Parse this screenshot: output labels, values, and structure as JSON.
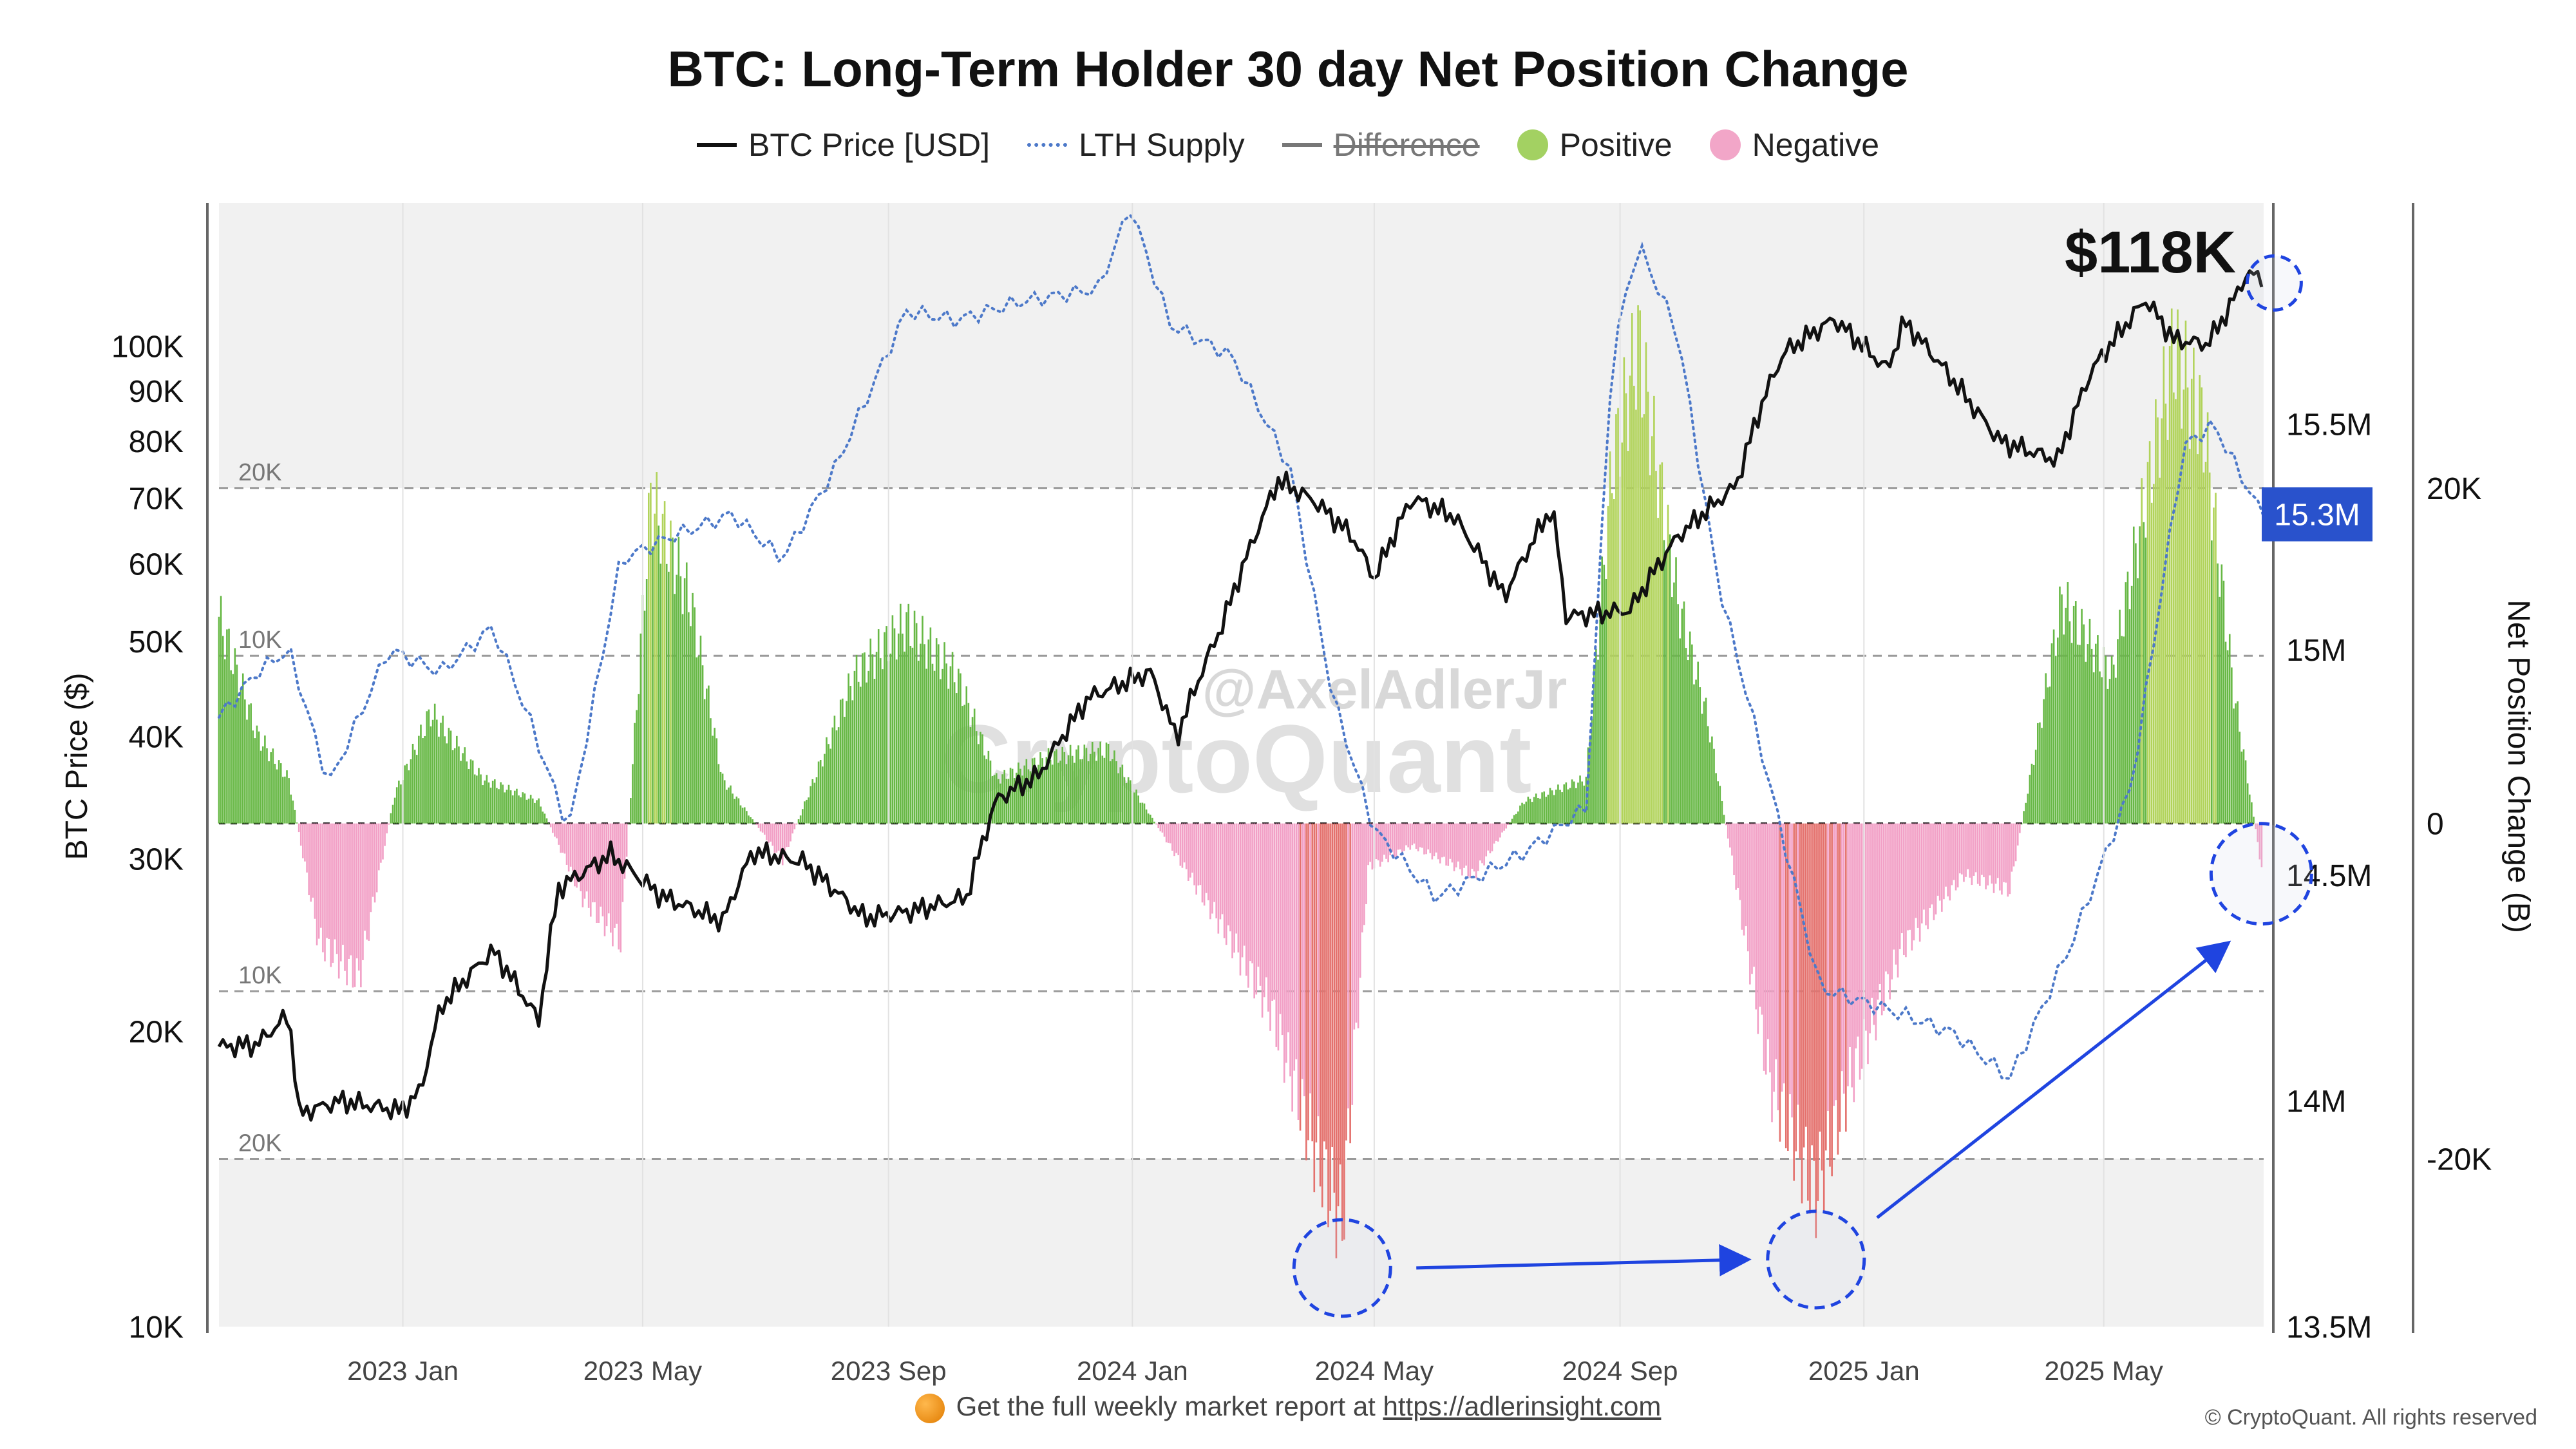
{
  "chart_data": {
    "type": "bar",
    "title": "BTC: Long-Term Holder 30 day Net Position Change",
    "legend": [
      {
        "label": "BTC Price [USD]",
        "style": "line",
        "color": "#111111"
      },
      {
        "label": "LTH Supply",
        "style": "dotted",
        "color": "#4d79c9"
      },
      {
        "label": "Difference",
        "style": "line",
        "color": "#777777",
        "hidden": true
      },
      {
        "label": "Positive",
        "style": "dot",
        "color": "#a3d162"
      },
      {
        "label": "Negative",
        "style": "dot",
        "color": "#f2a6c8"
      }
    ],
    "legend_position": "top-center",
    "colors": {
      "price": "#111111",
      "supply": "#4d79c9",
      "positive": "#67b845",
      "positive_light": "#b1d35a",
      "negative": "#f2a0c6",
      "negative_strong": "#e4716d",
      "annotation": "#1f44e0",
      "current_badge": "#2952cc"
    },
    "left_axis": {
      "label": "BTC Price ($)",
      "scale": "log",
      "range": [
        10000,
        140000
      ],
      "ticks": [
        {
          "value": 10000,
          "label": "10K"
        },
        {
          "value": 20000,
          "label": "20K"
        },
        {
          "value": 30000,
          "label": "30K"
        },
        {
          "value": 40000,
          "label": "40K"
        },
        {
          "value": 50000,
          "label": "50K"
        },
        {
          "value": 60000,
          "label": "60K"
        },
        {
          "value": 70000,
          "label": "70K"
        },
        {
          "value": 80000,
          "label": "80K"
        },
        {
          "value": 90000,
          "label": "90K"
        },
        {
          "value": 100000,
          "label": "100K"
        }
      ]
    },
    "supply_axis": {
      "range": [
        13500000,
        15990000
      ],
      "ticks": [
        {
          "value": 13500000,
          "label": "13.5M"
        },
        {
          "value": 14000000,
          "label": "14M"
        },
        {
          "value": 14500000,
          "label": "14.5M"
        },
        {
          "value": 15000000,
          "label": "15M"
        },
        {
          "value": 15500000,
          "label": "15.5M"
        }
      ],
      "current": {
        "value": 15300000,
        "label": "15.3M"
      }
    },
    "right_axis": {
      "label": "Net Position Change (B)",
      "range": [
        -30000,
        37000
      ],
      "ticks": [
        {
          "value": 20000,
          "label": "20K"
        },
        {
          "value": 0,
          "label": "0"
        },
        {
          "value": -20000,
          "label": "-20K"
        }
      ]
    },
    "reference_lines": [
      {
        "value": 20000,
        "label": "20K"
      },
      {
        "value": 10000,
        "label": "10K"
      },
      {
        "value": -10000,
        "label": "10K"
      },
      {
        "value": -20000,
        "label": "20K"
      }
    ],
    "x_axis": {
      "range": [
        "2022-10-01",
        "2025-07-20"
      ],
      "ticks": [
        {
          "date": "2023-01-01",
          "label": "2023 Jan"
        },
        {
          "date": "2023-05-01",
          "label": "2023 May"
        },
        {
          "date": "2023-09-01",
          "label": "2023 Sep"
        },
        {
          "date": "2024-01-01",
          "label": "2024 Jan"
        },
        {
          "date": "2024-05-01",
          "label": "2024 May"
        },
        {
          "date": "2024-09-01",
          "label": "2024 Sep"
        },
        {
          "date": "2025-01-01",
          "label": "2025 Jan"
        },
        {
          "date": "2025-05-01",
          "label": "2025 May"
        }
      ]
    },
    "btc_price": [
      [
        "2022-10-01",
        19300
      ],
      [
        "2022-10-20",
        19400
      ],
      [
        "2022-11-05",
        20800
      ],
      [
        "2022-11-10",
        16500
      ],
      [
        "2022-12-01",
        17000
      ],
      [
        "2022-12-31",
        16600
      ],
      [
        "2023-01-10",
        17400
      ],
      [
        "2023-01-20",
        21200
      ],
      [
        "2023-02-15",
        24200
      ],
      [
        "2023-03-10",
        20500
      ],
      [
        "2023-03-20",
        28000
      ],
      [
        "2023-04-15",
        30300
      ],
      [
        "2023-05-10",
        27500
      ],
      [
        "2023-06-10",
        25900
      ],
      [
        "2023-06-25",
        30500
      ],
      [
        "2023-07-20",
        29800
      ],
      [
        "2023-08-20",
        26100
      ],
      [
        "2023-09-15",
        26600
      ],
      [
        "2023-10-10",
        27400
      ],
      [
        "2023-10-25",
        34500
      ],
      [
        "2023-11-15",
        36500
      ],
      [
        "2023-12-10",
        43800
      ],
      [
        "2024-01-10",
        46500
      ],
      [
        "2024-01-23",
        39800
      ],
      [
        "2024-02-15",
        52000
      ],
      [
        "2024-03-05",
        66000
      ],
      [
        "2024-03-14",
        73000
      ],
      [
        "2024-04-01",
        69500
      ],
      [
        "2024-04-20",
        64000
      ],
      [
        "2024-05-01",
        58000
      ],
      [
        "2024-05-20",
        70000
      ],
      [
        "2024-06-10",
        67000
      ],
      [
        "2024-07-05",
        55500
      ],
      [
        "2024-07-29",
        68500
      ],
      [
        "2024-08-05",
        53000
      ],
      [
        "2024-09-06",
        53800
      ],
      [
        "2024-09-30",
        64000
      ],
      [
        "2024-10-29",
        72000
      ],
      [
        "2024-11-12",
        88500
      ],
      [
        "2024-11-22",
        98500
      ],
      [
        "2024-12-17",
        106500
      ],
      [
        "2025-01-13",
        94500
      ],
      [
        "2025-01-21",
        106000
      ],
      [
        "2025-02-25",
        86500
      ],
      [
        "2025-03-10",
        80000
      ],
      [
        "2025-04-08",
        76500
      ],
      [
        "2025-04-25",
        94500
      ],
      [
        "2025-05-22",
        111500
      ],
      [
        "2025-06-05",
        101500
      ],
      [
        "2025-06-22",
        100500
      ],
      [
        "2025-07-03",
        109500
      ],
      [
        "2025-07-11",
        118000
      ],
      [
        "2025-07-19",
        118000
      ]
    ],
    "lth_supply": [
      [
        "2022-10-01",
        14850000
      ],
      [
        "2022-10-20",
        14950000
      ],
      [
        "2022-11-05",
        15000000
      ],
      [
        "2022-11-25",
        14700000
      ],
      [
        "2022-12-25",
        15000000
      ],
      [
        "2023-01-20",
        14950000
      ],
      [
        "2023-02-15",
        15050000
      ],
      [
        "2023-03-05",
        14850000
      ],
      [
        "2023-03-25",
        14600000
      ],
      [
        "2023-04-20",
        15200000
      ],
      [
        "2023-05-15",
        15250000
      ],
      [
        "2023-06-15",
        15300000
      ],
      [
        "2023-07-10",
        15200000
      ],
      [
        "2023-08-05",
        15400000
      ],
      [
        "2023-09-10",
        15750000
      ],
      [
        "2023-10-05",
        15730000
      ],
      [
        "2023-11-05",
        15770000
      ],
      [
        "2023-12-15",
        15800000
      ],
      [
        "2023-12-31",
        15980000
      ],
      [
        "2024-01-20",
        15720000
      ],
      [
        "2024-02-20",
        15650000
      ],
      [
        "2024-03-20",
        15400000
      ],
      [
        "2024-04-10",
        14900000
      ],
      [
        "2024-05-01",
        14600000
      ],
      [
        "2024-06-01",
        14450000
      ],
      [
        "2024-07-15",
        14550000
      ],
      [
        "2024-08-15",
        14650000
      ],
      [
        "2024-08-28",
        15650000
      ],
      [
        "2024-09-10",
        15900000
      ],
      [
        "2024-09-30",
        15700000
      ],
      [
        "2024-10-20",
        15150000
      ],
      [
        "2024-11-15",
        14700000
      ],
      [
        "2024-12-10",
        14250000
      ],
      [
        "2025-01-15",
        14200000
      ],
      [
        "2025-02-15",
        14150000
      ],
      [
        "2025-03-15",
        14050000
      ],
      [
        "2025-04-15",
        14350000
      ],
      [
        "2025-05-15",
        14700000
      ],
      [
        "2025-06-10",
        15450000
      ],
      [
        "2025-06-25",
        15500000
      ],
      [
        "2025-07-19",
        15300000
      ]
    ],
    "net_position_change": [
      [
        "2022-10-01",
        14000
      ],
      [
        "2022-10-20",
        6000
      ],
      [
        "2022-11-05",
        3000
      ],
      [
        "2022-11-20",
        -8000
      ],
      [
        "2022-12-10",
        -10500
      ],
      [
        "2022-12-28",
        2000
      ],
      [
        "2023-01-15",
        7500
      ],
      [
        "2023-02-10",
        3000
      ],
      [
        "2023-03-10",
        1500
      ],
      [
        "2023-04-01",
        -5000
      ],
      [
        "2023-04-20",
        -8000
      ],
      [
        "2023-05-05",
        22000
      ],
      [
        "2023-05-25",
        15000
      ],
      [
        "2023-06-10",
        3000
      ],
      [
        "2023-07-10",
        -2500
      ],
      [
        "2023-08-15",
        10000
      ],
      [
        "2023-09-10",
        13500
      ],
      [
        "2023-10-05",
        10000
      ],
      [
        "2023-10-25",
        3000
      ],
      [
        "2023-11-20",
        4500
      ],
      [
        "2023-12-20",
        5000
      ],
      [
        "2024-01-15",
        -500
      ],
      [
        "2024-02-15",
        -7000
      ],
      [
        "2024-03-10",
        -12500
      ],
      [
        "2024-04-01",
        -22000
      ],
      [
        "2024-04-15",
        -27000
      ],
      [
        "2024-04-28",
        -3000
      ],
      [
        "2024-05-20",
        -1500
      ],
      [
        "2024-06-20",
        -3500
      ],
      [
        "2024-07-15",
        1500
      ],
      [
        "2024-08-15",
        3000
      ],
      [
        "2024-08-28",
        24000
      ],
      [
        "2024-09-10",
        32500
      ],
      [
        "2024-09-30",
        15000
      ],
      [
        "2024-10-15",
        7000
      ],
      [
        "2024-11-15",
        -17500
      ],
      [
        "2024-12-08",
        -25000
      ],
      [
        "2024-12-25",
        -17500
      ],
      [
        "2025-01-20",
        -8500
      ],
      [
        "2025-02-20",
        -3500
      ],
      [
        "2025-03-15",
        -4500
      ],
      [
        "2025-04-10",
        15000
      ],
      [
        "2025-05-05",
        10000
      ],
      [
        "2025-06-05",
        32000
      ],
      [
        "2025-06-20",
        27000
      ],
      [
        "2025-07-05",
        9000
      ],
      [
        "2025-07-19",
        -3000
      ]
    ],
    "annotations": [
      {
        "text": "$118K",
        "date": "2025-07-11",
        "value": 118000
      },
      {
        "type": "circle",
        "date": "2024-04-15",
        "net_value": -26500
      },
      {
        "type": "circle",
        "date": "2024-12-08",
        "net_value": -26000
      },
      {
        "type": "circle",
        "date": "2025-07-14",
        "net_value": -3000
      },
      {
        "type": "circle",
        "date": "2025-07-14",
        "price_value": 116000
      },
      {
        "type": "arrow",
        "from": "2024-04-15",
        "to": "2024-12-08"
      },
      {
        "type": "arrow",
        "from": "2024-12-08",
        "to": "2025-07-14"
      }
    ],
    "watermarks": [
      "@AxelAdlerJr",
      "CryptoQuant"
    ]
  },
  "footer": {
    "text": "Get the full weekly market report at",
    "link": "https://adlerinsight.com"
  },
  "copyright": "© CryptoQuant. All rights reserved"
}
